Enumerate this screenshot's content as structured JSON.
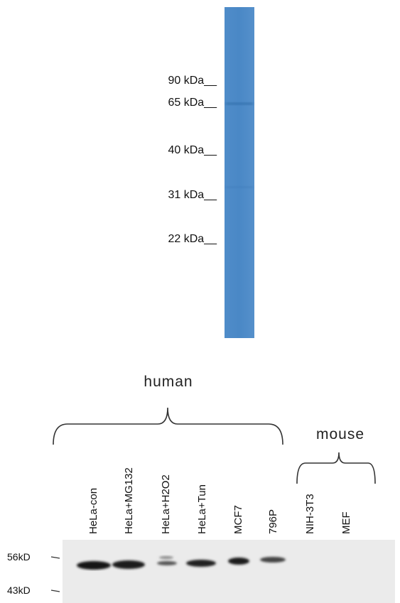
{
  "top_blot": {
    "markers": [
      "90 kDa__",
      "65 kDa__",
      "40 kDa__",
      "31 kDa__",
      "22 kDa__"
    ]
  },
  "bottom_blot": {
    "groups": [
      "human",
      "mouse"
    ],
    "lanes": [
      "HeLa-con",
      "HeLa+MG132",
      "HeLa+H2O2",
      "HeLa+Tun",
      "MCF7",
      "796P",
      "NIH-3T3",
      "MEF"
    ],
    "markers": [
      "56kD",
      "43kD"
    ]
  }
}
